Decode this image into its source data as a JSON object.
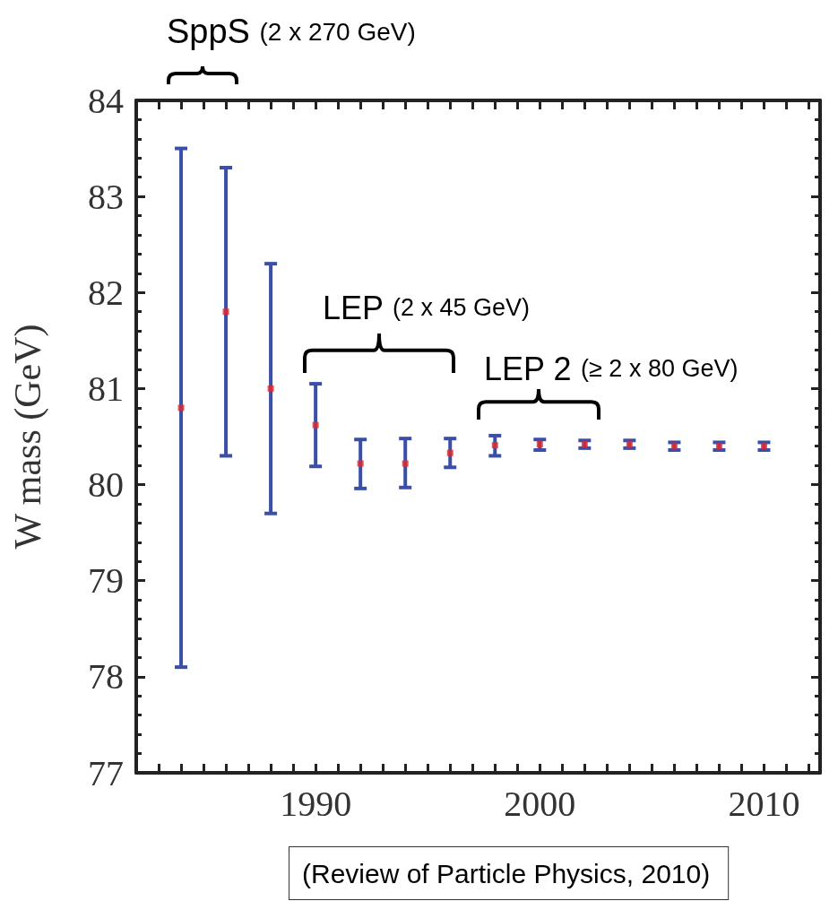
{
  "chart_data": {
    "type": "scatter",
    "ylabel": "W mass (GeV)",
    "color": "#e8262a",
    "marker": "square",
    "x": [
      1984,
      1986,
      1988,
      1990,
      1992,
      1994,
      1996,
      1998,
      2000,
      2002,
      2004,
      2006,
      2008,
      2010
    ],
    "values": [
      80.8,
      81.8,
      81.0,
      80.62,
      80.22,
      80.22,
      80.33,
      80.41,
      80.42,
      80.42,
      80.42,
      80.4,
      80.4,
      80.4
    ],
    "errors": [
      [
        78.1,
        83.5
      ],
      [
        80.3,
        83.3
      ],
      [
        79.7,
        82.3
      ],
      [
        80.19,
        81.05
      ],
      [
        79.96,
        80.47
      ],
      [
        79.97,
        80.48
      ],
      [
        80.18,
        80.48
      ],
      [
        80.3,
        80.51
      ],
      [
        80.36,
        80.47
      ],
      [
        80.38,
        80.46
      ],
      [
        80.38,
        80.46
      ],
      [
        80.36,
        80.44
      ],
      [
        80.36,
        80.44
      ],
      [
        80.36,
        80.44
      ]
    ],
    "xlim": [
      1982,
      2012.5
    ],
    "xticks": [
      {
        "value": 1983,
        "label": null
      },
      {
        "value": 1984,
        "label": null
      },
      {
        "value": 1985,
        "label": null
      },
      {
        "value": 1986,
        "label": null
      },
      {
        "value": 1987,
        "label": null
      },
      {
        "value": 1988,
        "label": null
      },
      {
        "value": 1989,
        "label": null
      },
      1990,
      {
        "value": 1991,
        "label": null
      },
      {
        "value": 1992,
        "label": null
      },
      {
        "value": 1993,
        "label": null
      },
      {
        "value": 1994,
        "label": null
      },
      {
        "value": 1995,
        "label": null
      },
      {
        "value": 1996,
        "label": null
      },
      {
        "value": 1997,
        "label": null
      },
      {
        "value": 1998,
        "label": null
      },
      {
        "value": 1999,
        "label": null
      },
      2000,
      {
        "value": 2001,
        "label": null
      },
      {
        "value": 2002,
        "label": null
      },
      {
        "value": 2003,
        "label": null
      },
      {
        "value": 2004,
        "label": null
      },
      {
        "value": 2005,
        "label": null
      },
      {
        "value": 2006,
        "label": null
      },
      {
        "value": 2007,
        "label": null
      },
      {
        "value": 2008,
        "label": null
      },
      {
        "value": 2009,
        "label": null
      },
      2010,
      {
        "value": 2011,
        "label": null
      },
      {
        "value": 2012,
        "label": null
      }
    ],
    "ylim": [
      77,
      84
    ],
    "yticks": [
      77,
      78,
      79,
      80,
      81,
      82,
      83,
      84
    ],
    "annotations": [
      "SppS (2 x 270 GeV)",
      "LEP (2 x 45 GeV)",
      "LEP 2 (≥ 2 x 80 GeV)",
      "(Review of Particle Physics, 2010)"
    ]
  }
}
